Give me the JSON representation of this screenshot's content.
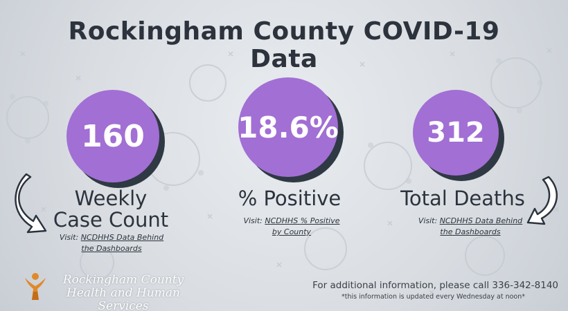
{
  "title_line1": "Rockingham County COVID-19",
  "title_line2": "Data",
  "stats": [
    {
      "value": "160",
      "label_line1": "Weekly",
      "label_line2": "Case Count",
      "visit_prefix": "Visit: ",
      "link_line1": "NCDHHS Data Behind",
      "link_line2": "the Dashboards"
    },
    {
      "value": "18.6%",
      "label_line1": "% Positive",
      "visit_prefix": "Visit: ",
      "link_line1": "NCDHHS % Positive",
      "link_line2": "by County"
    },
    {
      "value": "312",
      "label_line1": "Total Deaths",
      "visit_prefix": "Visit: ",
      "link_line1": "NCDHHS Data Behind",
      "link_line2": "the Dashboards"
    }
  ],
  "org": {
    "line1": "Rockingham County",
    "line2": "Health and Human Services"
  },
  "footer": {
    "info": "For additional information, please call 336-342-8140",
    "note": "*this information is updated every Wednesday at noon*"
  },
  "colors": {
    "circle": "#a26fd4",
    "circle_shadow": "#2f3944",
    "text_dark": "#2c333d",
    "logo_orange": "#e0892a"
  },
  "icons": {
    "left_arrow": "curved-arrow-down-right-icon",
    "right_arrow": "curved-arrow-down-left-icon",
    "logo": "hhs-figure-logo-icon",
    "background": "virus-pattern"
  }
}
